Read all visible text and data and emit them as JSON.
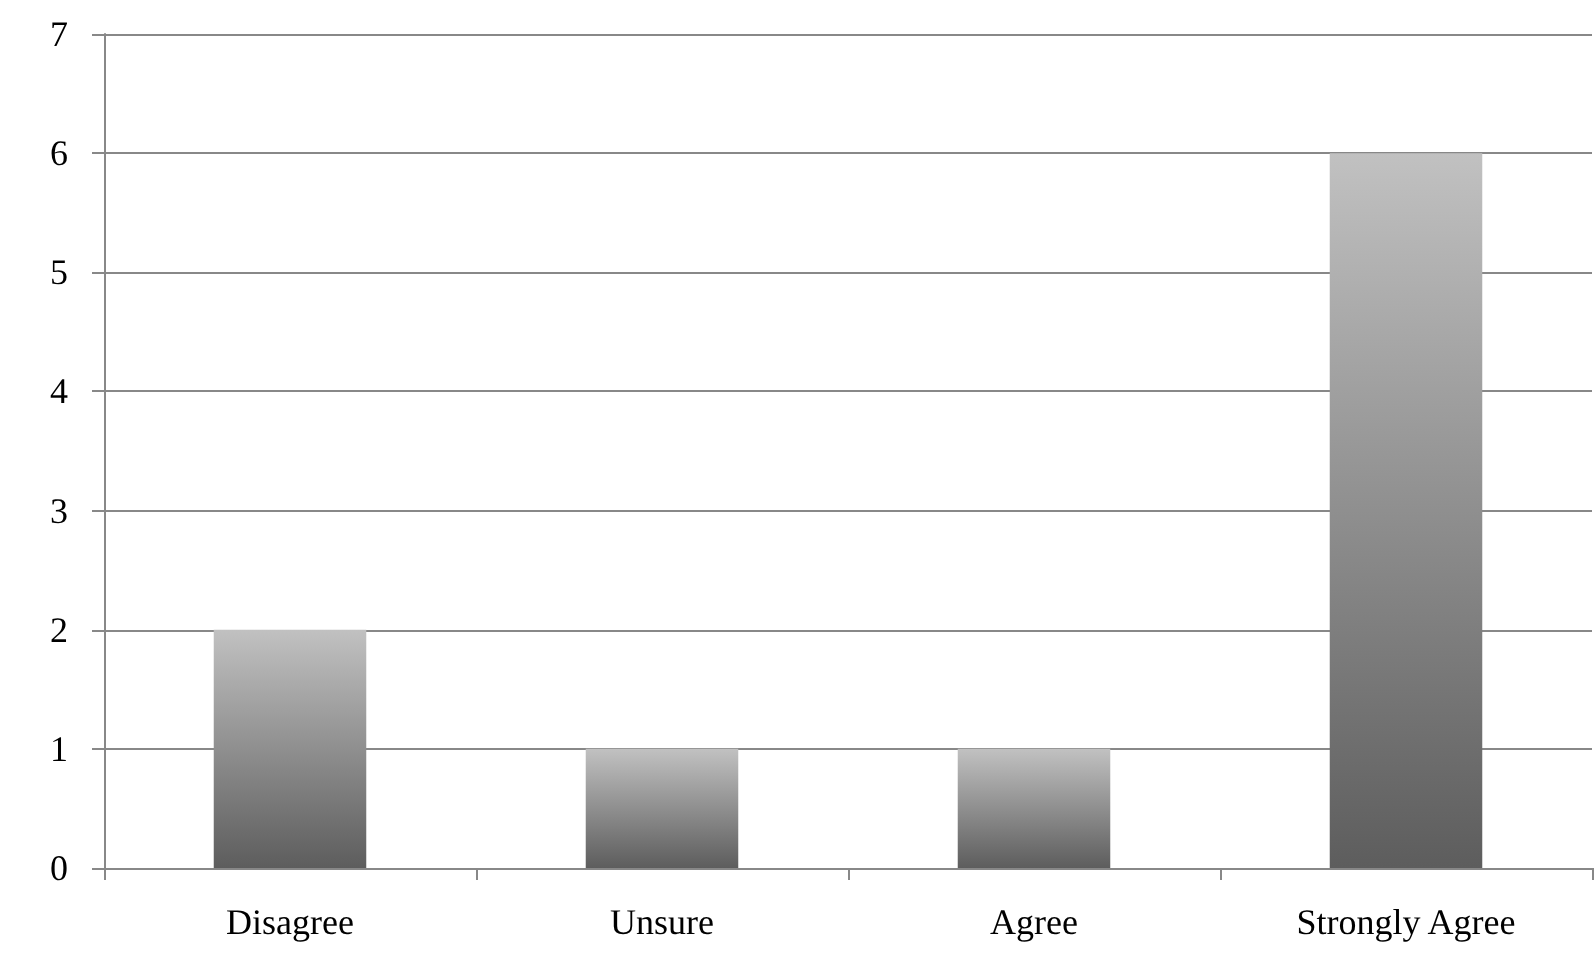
{
  "chart_data": {
    "type": "bar",
    "categories": [
      "Disagree",
      "Unsure",
      "Agree",
      "Strongly Agree"
    ],
    "values": [
      2,
      1,
      1,
      6
    ],
    "color": "#8f8f8f",
    "ylim": [
      0,
      7
    ],
    "yticks": [
      0,
      1,
      2,
      3,
      4,
      5,
      6,
      7
    ],
    "grid": "y"
  }
}
